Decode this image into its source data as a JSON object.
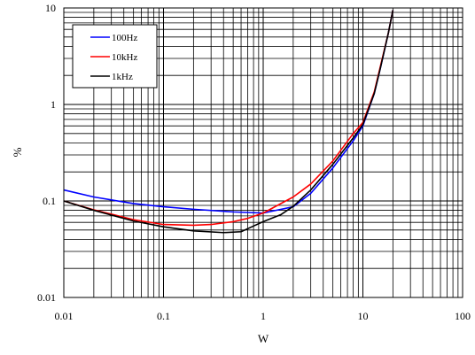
{
  "chart_data": {
    "type": "line",
    "title": "",
    "xlabel": "W",
    "ylabel": "%",
    "x_scale": "log",
    "y_scale": "log",
    "xlim": [
      0.01,
      100
    ],
    "ylim": [
      0.01,
      10
    ],
    "x_ticks": [
      "0.01",
      "0.1",
      "1",
      "10",
      "100"
    ],
    "y_ticks": [
      "0.01",
      "0.1",
      "1",
      "10"
    ],
    "grid": true,
    "legend_position": "top-left",
    "series": [
      {
        "name": "100Hz",
        "color": "#0000ff",
        "points": [
          [
            0.01,
            0.13
          ],
          [
            0.02,
            0.11
          ],
          [
            0.05,
            0.094
          ],
          [
            0.1,
            0.087
          ],
          [
            0.2,
            0.082
          ],
          [
            0.5,
            0.077
          ],
          [
            1,
            0.075
          ],
          [
            2,
            0.087
          ],
          [
            3,
            0.12
          ],
          [
            5,
            0.22
          ],
          [
            8,
            0.42
          ],
          [
            10,
            0.6
          ],
          [
            13,
            1.3
          ],
          [
            15,
            2.4
          ],
          [
            18,
            5.5
          ],
          [
            20,
            9.5
          ]
        ]
      },
      {
        "name": "10kHz",
        "color": "#ff0000",
        "points": [
          [
            0.01,
            0.1
          ],
          [
            0.02,
            0.081
          ],
          [
            0.05,
            0.064
          ],
          [
            0.1,
            0.057
          ],
          [
            0.2,
            0.056
          ],
          [
            0.3,
            0.057
          ],
          [
            0.5,
            0.061
          ],
          [
            0.7,
            0.066
          ],
          [
            1,
            0.075
          ],
          [
            2,
            0.11
          ],
          [
            3,
            0.15
          ],
          [
            5,
            0.26
          ],
          [
            8,
            0.5
          ],
          [
            10,
            0.65
          ],
          [
            13,
            1.35
          ],
          [
            15,
            2.5
          ],
          [
            18,
            5.5
          ],
          [
            20,
            9.5
          ]
        ]
      },
      {
        "name": "1kHz",
        "color": "#000000",
        "points": [
          [
            0.01,
            0.1
          ],
          [
            0.02,
            0.08
          ],
          [
            0.05,
            0.062
          ],
          [
            0.1,
            0.054
          ],
          [
            0.2,
            0.049
          ],
          [
            0.4,
            0.047
          ],
          [
            0.6,
            0.048
          ],
          [
            0.8,
            0.055
          ],
          [
            1,
            0.061
          ],
          [
            1.5,
            0.072
          ],
          [
            2,
            0.088
          ],
          [
            3,
            0.13
          ],
          [
            5,
            0.24
          ],
          [
            8,
            0.45
          ],
          [
            10,
            0.62
          ],
          [
            13,
            1.3
          ],
          [
            15,
            2.4
          ],
          [
            18,
            5.5
          ],
          [
            20,
            9.5
          ]
        ]
      }
    ]
  }
}
